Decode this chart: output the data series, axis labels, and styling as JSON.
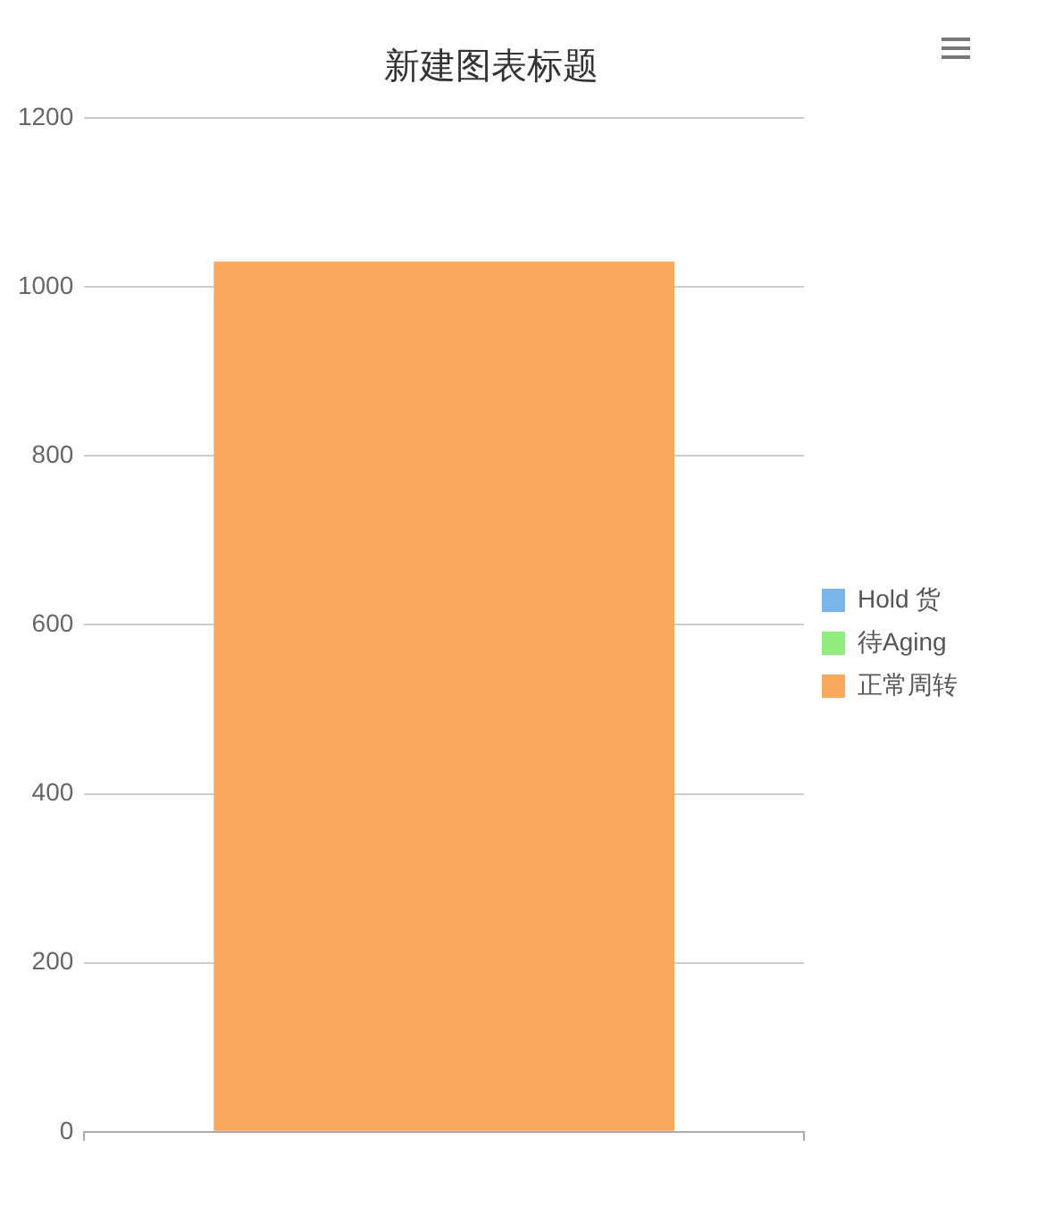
{
  "chart_data": {
    "type": "bar",
    "title": "新建图表标题",
    "categories": [
      null
    ],
    "series": [
      {
        "name": "Hold 货",
        "color": "#7cb5ec",
        "values": [
          null
        ]
      },
      {
        "name": "待Aging",
        "color": "#90ed7d",
        "values": [
          null
        ]
      },
      {
        "name": "正常周转",
        "color": "#f8a95e",
        "values": [
          1030
        ]
      }
    ],
    "stacked": true,
    "ylim": [
      0,
      1200
    ],
    "yticks": [
      0,
      200,
      400,
      600,
      800,
      1000,
      1200
    ],
    "grid": "y",
    "legend": "right"
  }
}
